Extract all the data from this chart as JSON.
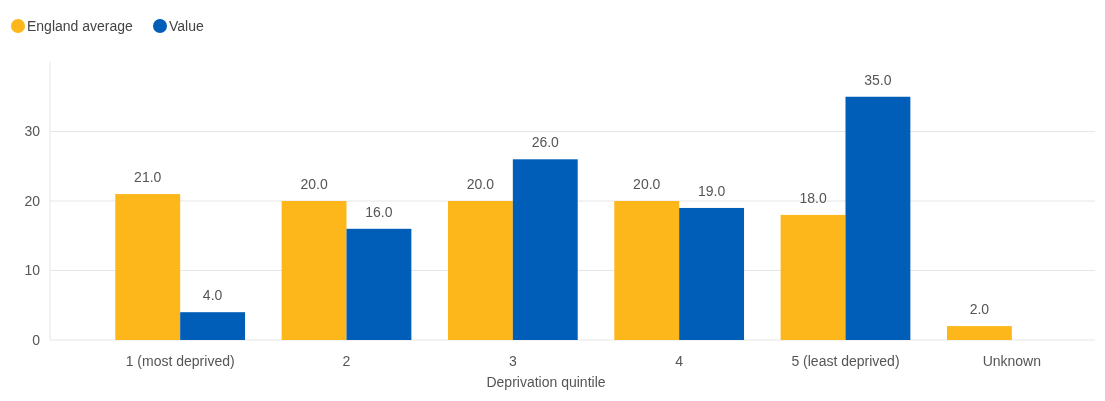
{
  "chart_data": {
    "type": "bar",
    "xlabel": "Deprivation quintile",
    "categories": [
      "1 (most deprived)",
      "2",
      "3",
      "4",
      "5 (least deprived)",
      "Unknown"
    ],
    "series": [
      {
        "name": "England average",
        "color": "#fdb71a",
        "values": [
          21,
          20,
          20,
          20,
          18,
          2
        ],
        "value_labels": [
          "21.0",
          "20.0",
          "20.0",
          "20.0",
          "18.0",
          "2.0"
        ]
      },
      {
        "name": "Value",
        "color": "#005eb8",
        "values": [
          4,
          16,
          26,
          19,
          35,
          null
        ],
        "value_labels": [
          "4.0",
          "16.0",
          "26.0",
          "19.0",
          "35.0",
          null
        ]
      }
    ],
    "ylim": [
      0,
      40
    ],
    "yticks": [
      0,
      10,
      20,
      30
    ],
    "grid": "y",
    "legend": "top left"
  }
}
